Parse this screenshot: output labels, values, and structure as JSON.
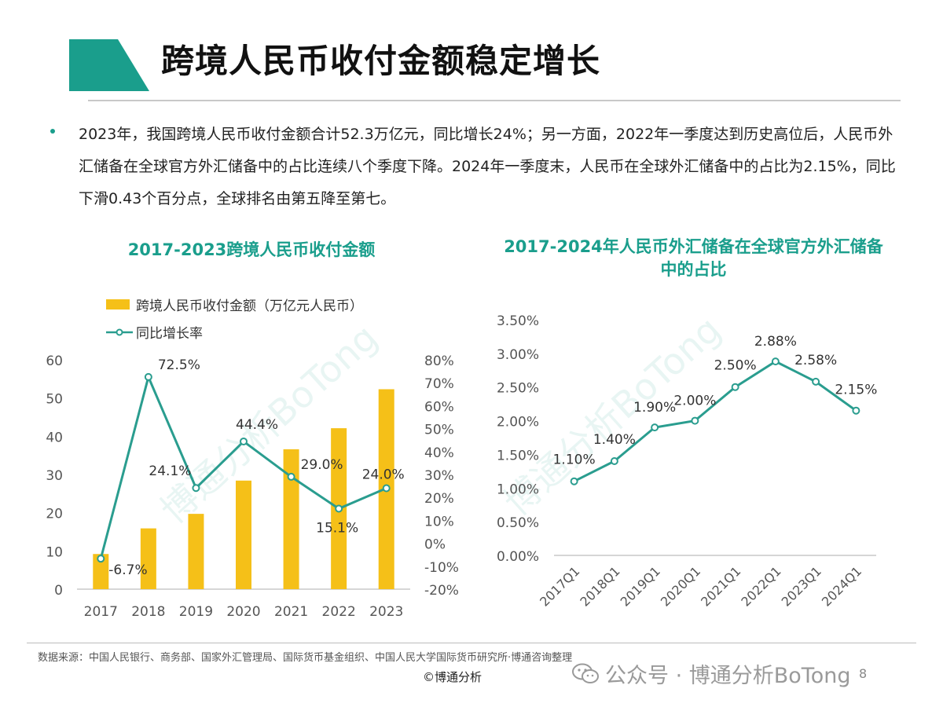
{
  "slide": {
    "title": "跨境人民币收付金额稳定增长",
    "bullet": "2023年，我国跨境人民币收付金额合计52.3万亿元，同比增长24%；另一方面，2022年一季度达到历史高位后，人民币外汇储备在全球官方外汇储备中的占比连续八个季度下降。2024年一季度末，人民币在全球外汇储备中的占比为2.15%，同比下滑0.43个百分点，全球排名由第五降至第七。",
    "source": "数据来源：中国人民银行、商务部、国家外汇管理局、国际货币基金组织、中国人民大学国际货币研究所·博通咨询整理",
    "copyright": "©博通分析",
    "wechat": "公众号 · 博通分析BoTong",
    "page": "8",
    "watermark": "博通分析BoTong",
    "colors": {
      "accent": "#1a9e8c",
      "bar": "#f5c018",
      "line": "#2a9d8f"
    }
  },
  "chart_data": [
    {
      "type": "bar",
      "title": "2017-2023跨境人民币收付金额",
      "categories": [
        "2017",
        "2018",
        "2019",
        "2020",
        "2021",
        "2022",
        "2023"
      ],
      "ylim": [
        0,
        60
      ],
      "y_ticks": [
        "0",
        "10",
        "20",
        "30",
        "40",
        "50",
        "60"
      ],
      "y2lim": [
        -20,
        80
      ],
      "y2_ticks": [
        "-20%",
        "-10%",
        "0%",
        "10%",
        "20%",
        "30%",
        "40%",
        "50%",
        "60%",
        "70%",
        "80%"
      ],
      "legend_position": "top-left",
      "series": [
        {
          "name": "跨境人民币收付金额（万亿元人民币）",
          "type": "bar",
          "axis": "left",
          "values": [
            9.2,
            15.9,
            19.7,
            28.4,
            36.6,
            42.1,
            52.3
          ]
        },
        {
          "name": "同比增长率",
          "type": "line",
          "axis": "right",
          "values": [
            -6.7,
            72.5,
            24.1,
            44.4,
            29.0,
            15.1,
            24.0
          ],
          "labels": [
            "-6.7%",
            "72.5%",
            "24.1%",
            "44.4%",
            "29.0%",
            "15.1%",
            "24.0%"
          ]
        }
      ]
    },
    {
      "type": "line",
      "title": "2017-2024年人民币外汇储备在全球官方外汇储备中的占比",
      "categories": [
        "2017Q1",
        "2018Q1",
        "2019Q1",
        "2020Q1",
        "2021Q1",
        "2022Q1",
        "2023Q1",
        "2024Q1"
      ],
      "ylim": [
        0,
        3.5
      ],
      "y_ticks": [
        "0.00%",
        "0.50%",
        "1.00%",
        "1.50%",
        "2.00%",
        "2.50%",
        "3.00%",
        "3.50%"
      ],
      "grid": false,
      "series": [
        {
          "values": [
            1.1,
            1.4,
            1.9,
            2.0,
            2.5,
            2.88,
            2.58,
            2.15
          ],
          "labels": [
            "1.10%",
            "1.40%",
            "1.90%",
            "2.00%",
            "2.50%",
            "2.88%",
            "2.58%",
            "2.15%"
          ]
        }
      ]
    }
  ]
}
